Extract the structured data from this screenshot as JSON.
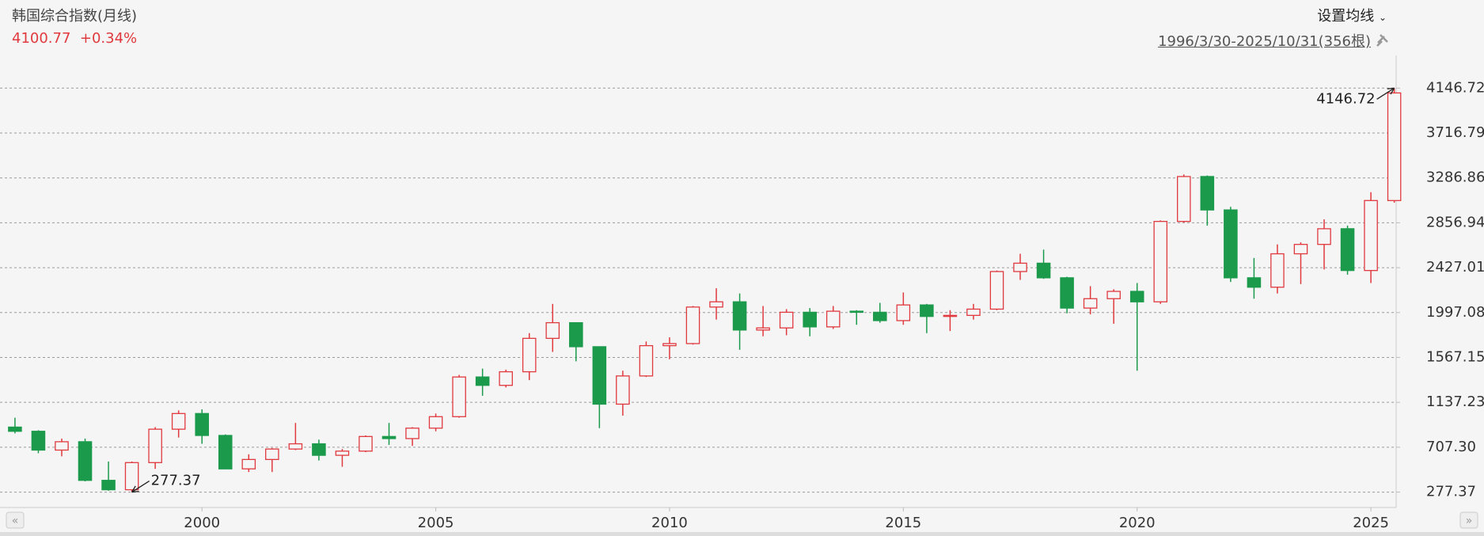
{
  "chart_data": {
    "type": "candlestick",
    "title": "韩国综合指数(月线)",
    "price": 4100.77,
    "change": "+0.34%",
    "ma_setting": "设置均线",
    "range_label": "1996/3/30-2025/10/31(356根)",
    "up_color": "#e0393e",
    "down_color": "#1a9a4a",
    "grid": true,
    "x": [
      1996.0,
      1996.5,
      1997.0,
      1997.5,
      1998.0,
      1998.5,
      1999.0,
      1999.5,
      2000.0,
      2000.5,
      2001.0,
      2001.5,
      2002.0,
      2002.5,
      2003.0,
      2003.5,
      2004.0,
      2004.5,
      2005.0,
      2005.5,
      2006.0,
      2006.5,
      2007.0,
      2007.5,
      2008.0,
      2008.5,
      2009.0,
      2009.5,
      2010.0,
      2010.5,
      2011.0,
      2011.5,
      2012.0,
      2012.5,
      2013.0,
      2013.5,
      2014.0,
      2014.5,
      2015.0,
      2015.5,
      2016.0,
      2016.5,
      2017.0,
      2017.5,
      2018.0,
      2018.5,
      2019.0,
      2019.5,
      2020.0,
      2020.5,
      2021.0,
      2021.5,
      2022.0,
      2022.5,
      2023.0,
      2023.5,
      2024.0,
      2024.5,
      2025.0,
      2025.5
    ],
    "open": [
      900,
      860,
      680,
      760,
      390,
      300,
      560,
      880,
      1030,
      820,
      500,
      590,
      690,
      740,
      630,
      670,
      810,
      790,
      890,
      1000,
      1380,
      1300,
      1430,
      1750,
      1900,
      1670,
      1120,
      1390,
      1680,
      1700,
      2050,
      2100,
      1830,
      1850,
      2000,
      1860,
      2010,
      2000,
      1920,
      2070,
      1960,
      1970,
      2030,
      2390,
      2470,
      2330,
      2040,
      2130,
      2200,
      2100,
      2870,
      3300,
      2980,
      2330,
      2240,
      2560,
      2650,
      2800,
      2400,
      3070
    ],
    "high": [
      990,
      870,
      790,
      790,
      570,
      570,
      900,
      1060,
      1070,
      830,
      640,
      700,
      940,
      780,
      690,
      820,
      940,
      900,
      1030,
      1400,
      1460,
      1450,
      1800,
      2080,
      1900,
      1670,
      1440,
      1720,
      1760,
      2060,
      2230,
      2180,
      2060,
      2030,
      2040,
      2060,
      2020,
      2090,
      2190,
      2080,
      2020,
      2080,
      2400,
      2560,
      2600,
      2340,
      2250,
      2220,
      2280,
      2880,
      3320,
      3310,
      3010,
      2520,
      2650,
      2670,
      2890,
      2830,
      3150,
      4146.72
    ],
    "low": [
      840,
      650,
      620,
      380,
      290,
      277.37,
      500,
      800,
      740,
      500,
      470,
      470,
      680,
      580,
      520,
      660,
      730,
      720,
      860,
      990,
      1200,
      1280,
      1350,
      1620,
      1530,
      890,
      1010,
      1380,
      1550,
      1690,
      1930,
      1640,
      1770,
      1780,
      1770,
      1840,
      1880,
      1900,
      1880,
      1800,
      1820,
      1930,
      2020,
      2310,
      2320,
      1990,
      1980,
      1890,
      1440,
      2080,
      2860,
      2830,
      2290,
      2130,
      2180,
      2270,
      2410,
      2360,
      2280,
      3050
    ],
    "close": [
      860,
      680,
      760,
      390,
      300,
      560,
      880,
      1030,
      820,
      500,
      590,
      690,
      740,
      630,
      670,
      810,
      790,
      890,
      1000,
      1380,
      1300,
      1430,
      1750,
      1900,
      1670,
      1120,
      1390,
      1680,
      1700,
      2050,
      2100,
      1830,
      1850,
      2000,
      1860,
      2010,
      2000,
      1920,
      2070,
      1960,
      1970,
      2030,
      2390,
      2470,
      2330,
      2040,
      2130,
      2200,
      2100,
      2870,
      3300,
      2980,
      2330,
      2240,
      2560,
      2650,
      2800,
      2400,
      3070,
      4100.77
    ],
    "xlim": [
      1995.68,
      2025.54
    ],
    "xticks": [
      2000,
      2005,
      2010,
      2015,
      2020,
      2025
    ],
    "ylim": [
      130,
      4460
    ],
    "yticks": [
      277.37,
      {
        "value": 707.3,
        "label": "707.30"
      },
      1137.23,
      1567.15,
      1997.08,
      2427.01,
      2856.94,
      3286.86,
      3716.79,
      4146.72
    ],
    "annotations": [
      {
        "x": 1998.5,
        "value": 277.37
      },
      {
        "x": 2025.5,
        "value": 4146.72
      }
    ]
  }
}
